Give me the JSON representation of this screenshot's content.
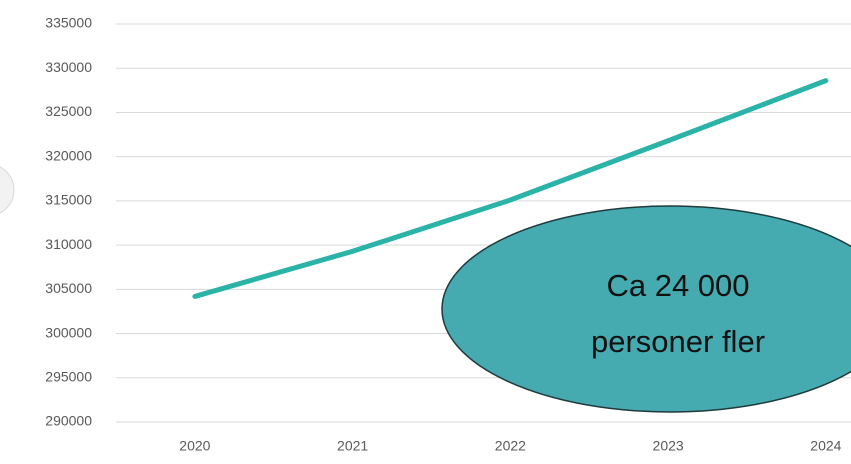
{
  "chart_data": {
    "type": "line",
    "categories": [
      "2020",
      "2021",
      "2022",
      "2023",
      "2024"
    ],
    "series": [
      {
        "name": "",
        "color": "#2bb3a8",
        "values": [
          304200,
          309300,
          315100,
          321800,
          328600
        ]
      }
    ],
    "ylim": [
      290000,
      335000
    ],
    "yticks": [
      290000,
      295000,
      300000,
      305000,
      310000,
      315000,
      320000,
      325000,
      330000,
      335000
    ],
    "grid": true,
    "annotation": [
      "Ca 24 000",
      "personer fler"
    ]
  }
}
